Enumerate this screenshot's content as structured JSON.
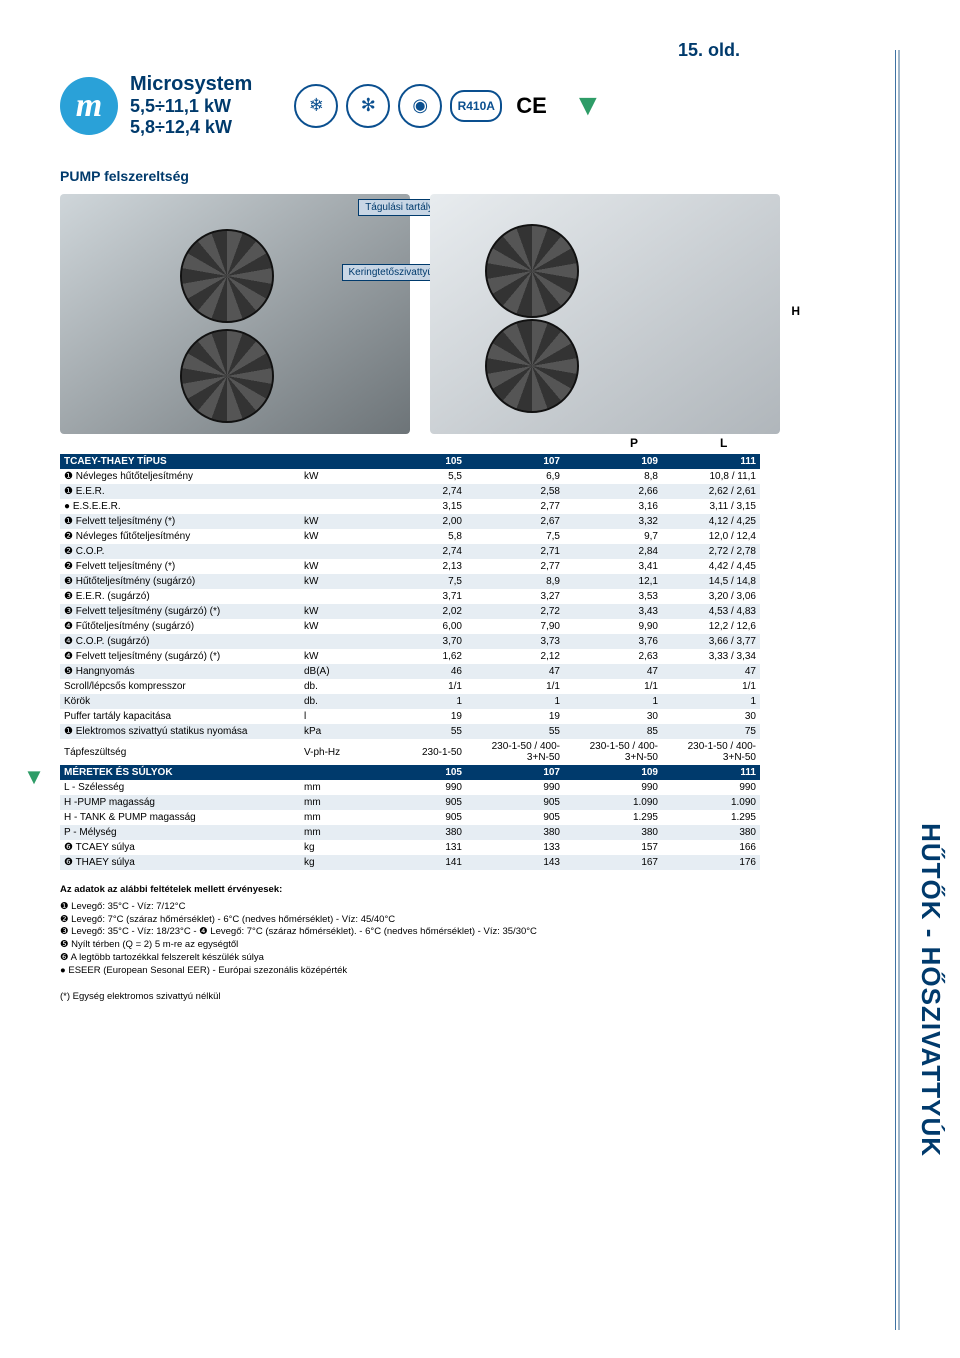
{
  "page_number": "15. old.",
  "product": {
    "name": "Microsystem",
    "range1": "5,5÷11,1 kW",
    "range2": "5,8÷12,4 kW"
  },
  "refrigerant_badge": "R410A",
  "ce_label": "CE",
  "section_title": "PUMP felszereltség",
  "label_tank": "Tágulási tartály",
  "label_pump": "Keringtetőszivattyú",
  "dim_H": "H",
  "dim_L": "L",
  "dim_P": "P",
  "spec_header_label": "TCAEY-THAEY TÍPUS",
  "models": [
    "105",
    "107",
    "109",
    "111"
  ],
  "unit_kw": "kW",
  "unit_db": "db.",
  "unit_dba": "dB(A)",
  "unit_l": "l",
  "unit_kpa": "kPa",
  "unit_vphhz": "V-ph-Hz",
  "unit_mm": "mm",
  "unit_kg": "kg",
  "rows": [
    {
      "label": "❶ Névleges hűtőteljesítmény",
      "unit": "kW",
      "v": [
        "5,5",
        "6,9",
        "8,8",
        "10,8 / 11,1"
      ]
    },
    {
      "label": "❶ E.E.R.",
      "unit": "",
      "v": [
        "2,74",
        "2,58",
        "2,66",
        "2,62 / 2,61"
      ]
    },
    {
      "label": "● E.S.E.E.R.",
      "unit": "",
      "v": [
        "3,15",
        "2,77",
        "3,16",
        "3,11 / 3,15"
      ]
    },
    {
      "label": "❶ Felvett teljesítmény (*)",
      "unit": "kW",
      "v": [
        "2,00",
        "2,67",
        "3,32",
        "4,12 / 4,25"
      ]
    },
    {
      "label": "❷ Névleges fűtőteljesítmény",
      "unit": "kW",
      "v": [
        "5,8",
        "7,5",
        "9,7",
        "12,0 / 12,4"
      ]
    },
    {
      "label": "❷ C.O.P.",
      "unit": "",
      "v": [
        "2,74",
        "2,71",
        "2,84",
        "2,72 / 2,78"
      ]
    },
    {
      "label": "❷ Felvett teljesítmény (*)",
      "unit": "kW",
      "v": [
        "2,13",
        "2,77",
        "3,41",
        "4,42 / 4,45"
      ]
    },
    {
      "label": "❸ Hűtőteljesítmény (sugárzó)",
      "unit": "kW",
      "v": [
        "7,5",
        "8,9",
        "12,1",
        "14,5 / 14,8"
      ]
    },
    {
      "label": "❸ E.E.R. (sugárzó)",
      "unit": "",
      "v": [
        "3,71",
        "3,27",
        "3,53",
        "3,20 / 3,06"
      ]
    },
    {
      "label": "❸ Felvett teljesítmény (sugárzó) (*)",
      "unit": "kW",
      "v": [
        "2,02",
        "2,72",
        "3,43",
        "4,53 / 4,83"
      ]
    },
    {
      "label": "❹ Fűtőteljesítmény (sugárzó)",
      "unit": "kW",
      "v": [
        "6,00",
        "7,90",
        "9,90",
        "12,2 / 12,6"
      ]
    },
    {
      "label": "❹ C.O.P. (sugárzó)",
      "unit": "",
      "v": [
        "3,70",
        "3,73",
        "3,76",
        "3,66 / 3,77"
      ]
    },
    {
      "label": "❹ Felvett teljesítmény (sugárzó) (*)",
      "unit": "kW",
      "v": [
        "1,62",
        "2,12",
        "2,63",
        "3,33 / 3,34"
      ]
    },
    {
      "label": "❺ Hangnyomás",
      "unit": "dB(A)",
      "v": [
        "46",
        "47",
        "47",
        "47"
      ]
    },
    {
      "label": "Scroll/lépcsős kompresszor",
      "unit": "db.",
      "v": [
        "1/1",
        "1/1",
        "1/1",
        "1/1"
      ]
    },
    {
      "label": "Körök",
      "unit": "db.",
      "v": [
        "1",
        "1",
        "1",
        "1"
      ]
    },
    {
      "label": "Puffer tartály kapacitása",
      "unit": "l",
      "v": [
        "19",
        "19",
        "30",
        "30"
      ]
    },
    {
      "label": "❶ Elektromos szivattyú statikus nyomása",
      "unit": "kPa",
      "v": [
        "55",
        "55",
        "85",
        "75"
      ]
    },
    {
      "label": "Tápfeszültség",
      "unit": "V-ph-Hz",
      "v": [
        "230-1-50",
        "230-1-50 / 400-3+N-50",
        "230-1-50 / 400-3+N-50",
        "230-1-50 / 400-3+N-50"
      ]
    }
  ],
  "dims_header": "MÉRETEK ÉS SÚLYOK",
  "dim_rows": [
    {
      "label": "L - Szélesség",
      "unit": "mm",
      "v": [
        "990",
        "990",
        "990",
        "990"
      ]
    },
    {
      "label": "H -PUMP magasság",
      "unit": "mm",
      "v": [
        "905",
        "905",
        "1.090",
        "1.090"
      ]
    },
    {
      "label": "H - TANK & PUMP magasság",
      "unit": "mm",
      "v": [
        "905",
        "905",
        "1.295",
        "1.295"
      ]
    },
    {
      "label": "P - Mélység",
      "unit": "mm",
      "v": [
        "380",
        "380",
        "380",
        "380"
      ]
    },
    {
      "label": "❻ TCAEY súlya",
      "unit": "kg",
      "v": [
        "131",
        "133",
        "157",
        "166"
      ]
    },
    {
      "label": "❻ THAEY súlya",
      "unit": "kg",
      "v": [
        "141",
        "143",
        "167",
        "176"
      ]
    }
  ],
  "notes_title": "Az adatok az alábbi feltételek mellett érvényesek:",
  "notes": [
    "❶ Levegő: 35°C - Víz: 7/12°C",
    "❷ Levegő: 7°C (száraz hőmérséklet) - 6°C (nedves hőmérséklet) - Víz: 45/40°C",
    "❸ Levegő: 35°C - Víz: 18/23°C - ❹ Levegő: 7°C (száraz hőmérséklet). - 6°C (nedves hőmérséklet) - Víz: 35/30°C",
    "❺ Nyílt térben (Q = 2) 5 m-re az egységtől",
    "❻ A legtöbb tartozékkal felszerelt készülék súlya",
    "● ESEER (European Sesonal EER) - Európai szezonális középérték"
  ],
  "footnote": "(*) Egység elektromos szivattyú nélkül",
  "side_text": "HŰTŐK - HŐSZIVATTYÚK",
  "icons": {
    "snow1": "❄",
    "snow2": "✻",
    "heat": "◉",
    "eurovent": "▼"
  }
}
